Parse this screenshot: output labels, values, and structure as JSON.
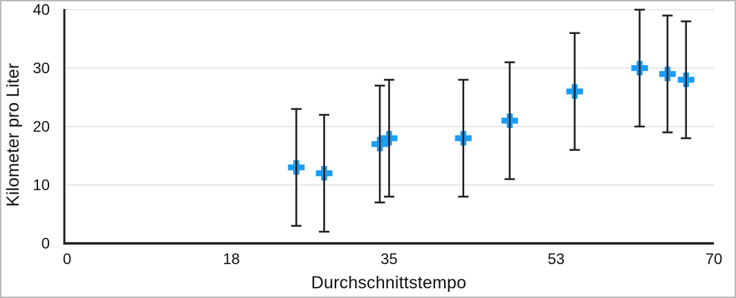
{
  "figure": {
    "background": "#ffffff",
    "border_color": "#b9b9b9"
  },
  "chart_data": {
    "type": "scatter",
    "title": "",
    "xlabel": "Durchschnittstempo",
    "ylabel": "Kilometer pro Liter",
    "xlim": [
      0,
      70
    ],
    "ylim": [
      0,
      40
    ],
    "x_ticks": [
      0,
      18,
      35,
      53,
      70
    ],
    "y_ticks": [
      0,
      10,
      20,
      30,
      40
    ],
    "grid": "horizontal",
    "legend_position": "none",
    "marker_style": "plus",
    "error_bar_style": "vertical, capped, symmetric ±10",
    "colors": {
      "marker": "#1a9df5",
      "axis": "#1e1e1e",
      "error_bar": "#1e1e1e",
      "gridline": "#e0e0e0",
      "text": "#111111"
    },
    "series": [
      {
        "name": "Kilometer pro Liter",
        "points": [
          {
            "x": 25,
            "y": 13,
            "error_plus": 10,
            "error_minus": 10
          },
          {
            "x": 28,
            "y": 12,
            "error_plus": 10,
            "error_minus": 10
          },
          {
            "x": 34,
            "y": 17,
            "error_plus": 10,
            "error_minus": 10
          },
          {
            "x": 35,
            "y": 18,
            "error_plus": 10,
            "error_minus": 10
          },
          {
            "x": 43,
            "y": 18,
            "error_plus": 10,
            "error_minus": 10
          },
          {
            "x": 48,
            "y": 21,
            "error_plus": 10,
            "error_minus": 10
          },
          {
            "x": 55,
            "y": 26,
            "error_plus": 10,
            "error_minus": 10
          },
          {
            "x": 62,
            "y": 30,
            "error_plus": 10,
            "error_minus": 10
          },
          {
            "x": 65,
            "y": 29,
            "error_plus": 10,
            "error_minus": 10
          },
          {
            "x": 67,
            "y": 28,
            "error_plus": 10,
            "error_minus": 10
          }
        ]
      }
    ]
  }
}
